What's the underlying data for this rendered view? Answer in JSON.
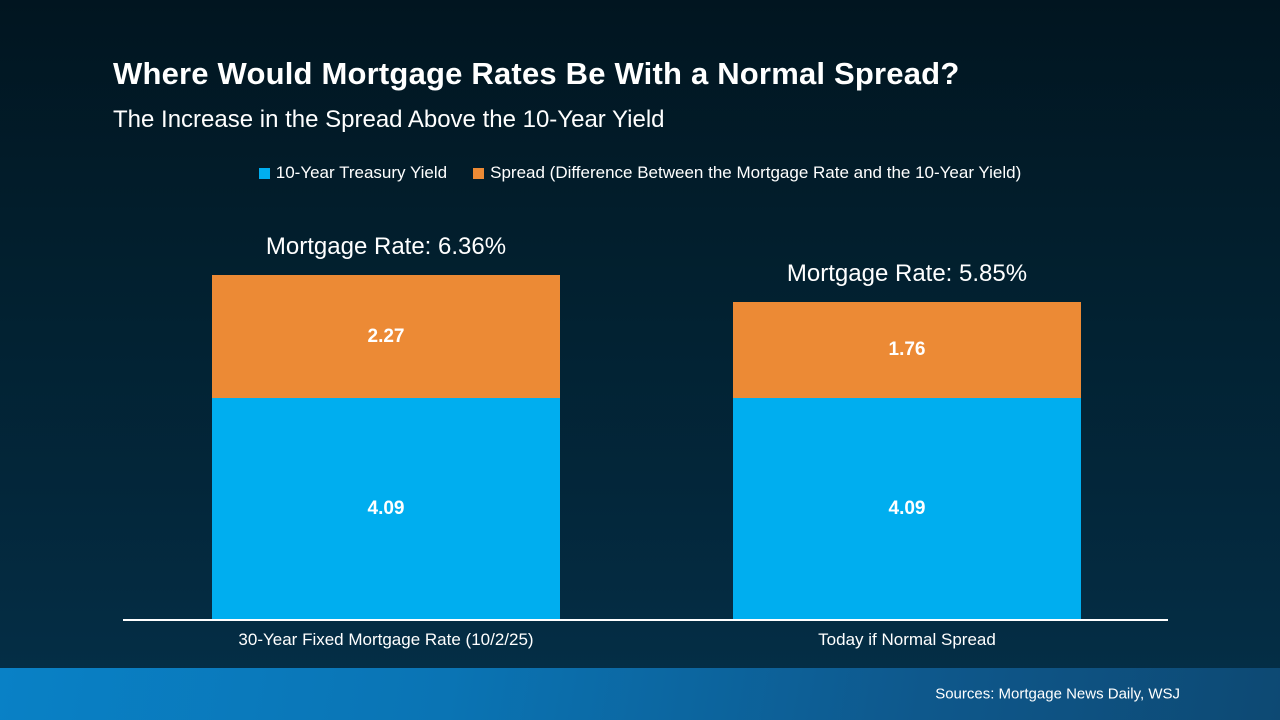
{
  "header": {
    "title": "Where Would Mortgage Rates Be With a Normal Spread?",
    "subtitle": "The Increase in the Spread Above the 10-Year Yield"
  },
  "legend": [
    {
      "label": "10-Year Treasury Yield",
      "color": "#00AEEF"
    },
    {
      "label": "Spread (Difference Between the Mortgage Rate and the 10-Year Yield)",
      "color": "#EC8A35"
    }
  ],
  "chart_data": {
    "type": "bar",
    "stacked": true,
    "title": "Where Would Mortgage Rates Be With a Normal Spread?",
    "subtitle": "The Increase in the Spread Above the 10-Year Yield",
    "categories": [
      "30-Year Fixed Mortgage Rate (10/2/25)",
      "Today if Normal Spread"
    ],
    "series": [
      {
        "name": "10-Year Treasury Yield",
        "color": "#00AEEF",
        "values": [
          4.09,
          4.09
        ]
      },
      {
        "name": "Spread (Difference Between the Mortgage Rate and the 10-Year Yield)",
        "color": "#EC8A35",
        "values": [
          2.27,
          1.76
        ]
      }
    ],
    "totals_labels": [
      "Mortgage Rate: 6.36%",
      "Mortgage Rate: 5.85%"
    ],
    "totals": [
      6.36,
      5.85
    ],
    "ylim": [
      0,
      6.5
    ],
    "grid": false,
    "legend_position": "top",
    "value_labels": "inside-center"
  },
  "footer": {
    "source": "Sources: Mortgage News Daily, WSJ"
  },
  "colors": {
    "treasury_blue": "#00AEEF",
    "spread_orange": "#EC8A35",
    "background_top": "#011520",
    "background_bottom": "#053049",
    "footer_gradient_left": "#0981C6",
    "footer_gradient_right": "#0D4973",
    "axis_line": "#FFFFFF",
    "text": "#FFFFFF"
  }
}
